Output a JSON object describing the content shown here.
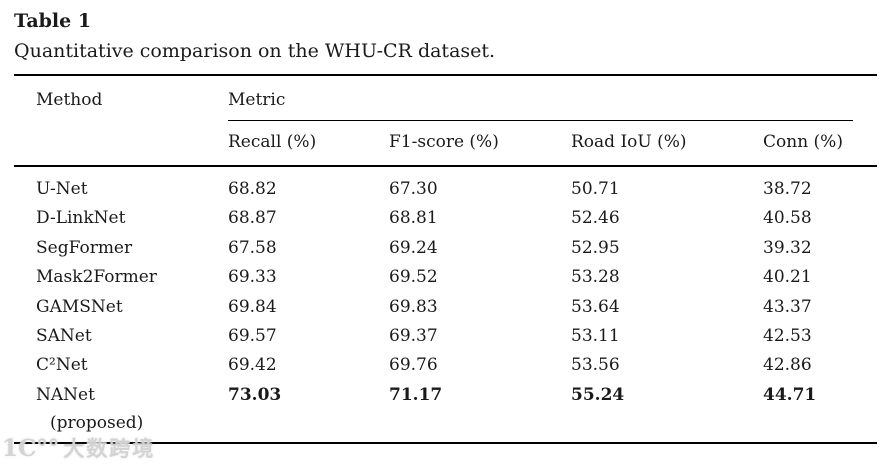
{
  "figure": {
    "label": "Table 1",
    "caption": "Quantitative comparison on the WHU-CR dataset."
  },
  "table": {
    "method_header": "Method",
    "metric_group_header": "Metric",
    "columns": [
      "Recall (%)",
      "F1-score (%)",
      "Road IoU (%)",
      "Conn (%)"
    ],
    "rows": [
      {
        "method": "U-Net",
        "recall": "68.82",
        "f1_score": "67.30",
        "road_iou": "50.71",
        "conn": "38.72"
      },
      {
        "method": "D-LinkNet",
        "recall": "68.87",
        "f1_score": "68.81",
        "road_iou": "52.46",
        "conn": "40.58"
      },
      {
        "method": "SegFormer",
        "recall": "67.58",
        "f1_score": "69.24",
        "road_iou": "52.95",
        "conn": "39.32"
      },
      {
        "method": "Mask2Former",
        "recall": "69.33",
        "f1_score": "69.52",
        "road_iou": "53.28",
        "conn": "40.21"
      },
      {
        "method": "GAMSNet",
        "recall": "69.84",
        "f1_score": "69.83",
        "road_iou": "53.64",
        "conn": "43.37"
      },
      {
        "method": "SANet",
        "recall": "69.57",
        "f1_score": "69.37",
        "road_iou": "53.11",
        "conn": "42.53"
      },
      {
        "method": "C²Net",
        "recall": "69.42",
        "f1_score": "69.76",
        "road_iou": "53.56",
        "conn": "42.86"
      },
      {
        "method": "NANet",
        "note": "(proposed)",
        "recall": "73.03",
        "f1_score": "71.17",
        "road_iou": "55.24",
        "conn": "44.71"
      }
    ]
  },
  "watermark": {
    "logo": "1C°°",
    "text": "大数跨境"
  },
  "colors": {
    "text": "#1a1a1a",
    "rule": "#000000",
    "background": "#ffffff",
    "watermark": "#cdcdcd"
  }
}
